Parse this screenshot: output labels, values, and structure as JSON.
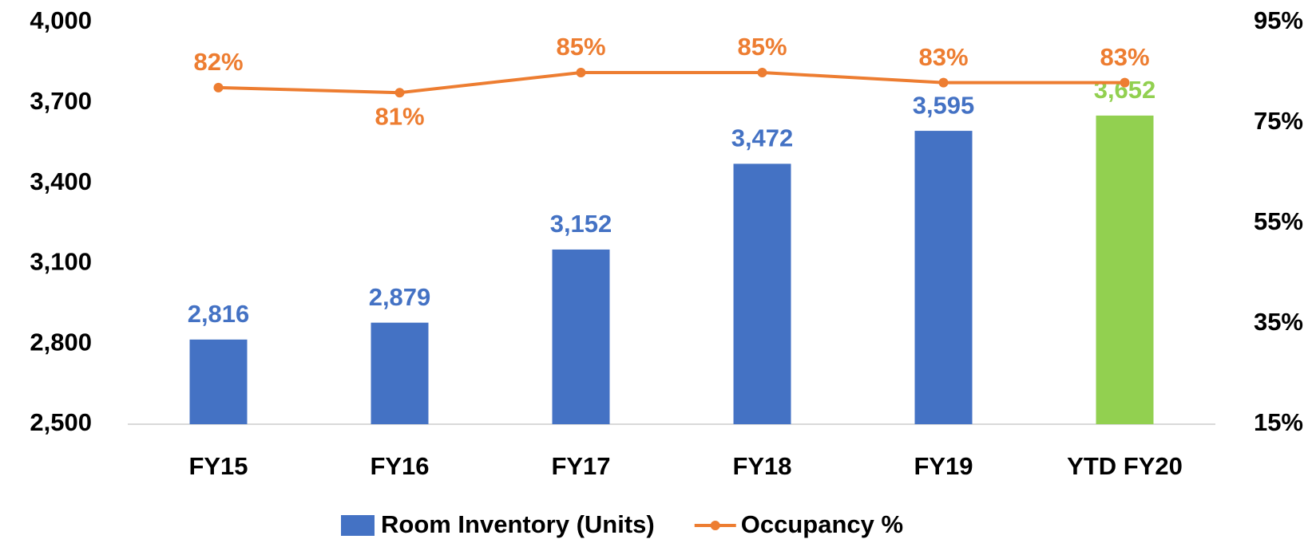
{
  "chart_data": {
    "type": "bar_line",
    "categories": [
      "FY15",
      "FY16",
      "FY17",
      "FY18",
      "FY19",
      "YTD FY20"
    ],
    "series": [
      {
        "name": "Room Inventory (Units)",
        "type": "bar",
        "color": "#4472c4",
        "point_colors": [
          "#4472c4",
          "#4472c4",
          "#4472c4",
          "#4472c4",
          "#4472c4",
          "#92d050"
        ],
        "values": [
          2816,
          2879,
          3152,
          3472,
          3595,
          3652
        ],
        "value_labels": [
          "2,816",
          "2,879",
          "3,152",
          "3,472",
          "3,595",
          "3,652"
        ]
      },
      {
        "name": "Occupancy %",
        "type": "line",
        "color": "#ed7d31",
        "axis": "y2",
        "values": [
          82,
          81,
          85,
          85,
          83,
          83
        ],
        "value_labels": [
          "82%",
          "81%",
          "85%",
          "85%",
          "83%",
          "83%"
        ]
      }
    ],
    "ylim": [
      2500,
      4000
    ],
    "yticks": [
      {
        "value": 2500,
        "label": "2,500"
      },
      {
        "value": 2800,
        "label": "2,800"
      },
      {
        "value": 3100,
        "label": "3,100"
      },
      {
        "value": 3400,
        "label": "3,400"
      },
      {
        "value": 3700,
        "label": "3,700"
      },
      {
        "value": 4000,
        "label": "4,000"
      }
    ],
    "y2lim": [
      15,
      95
    ],
    "y2ticks": [
      {
        "value": 15,
        "label": "15%"
      },
      {
        "value": 35,
        "label": "35%"
      },
      {
        "value": 55,
        "label": "55%"
      },
      {
        "value": 75,
        "label": "75%"
      },
      {
        "value": 95,
        "label": "95%"
      }
    ],
    "grid": false,
    "legend": "bottom"
  }
}
